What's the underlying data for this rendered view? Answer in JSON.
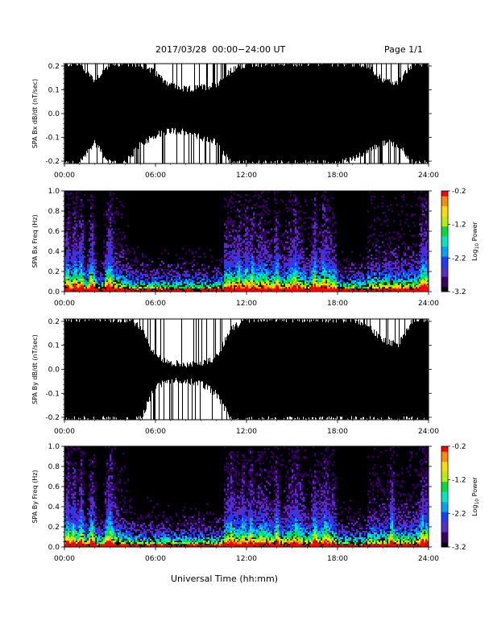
{
  "header": {
    "title": "2017/03/28  00:00−24:00 UT",
    "page": "Page 1/1"
  },
  "xlabel": "Universal Time (hh:mm)",
  "x_ticks": [
    "00:00",
    "06:00",
    "12:00",
    "18:00",
    "24:00"
  ],
  "colors": {
    "trace": "#000000",
    "background": "#ffffff",
    "spectrogram_bg": "#000000"
  },
  "colorbar": {
    "label": "Log",
    "label_sub": "10",
    "label_tail": " Power",
    "ticks": [
      "-0.2",
      "-1.2",
      "-2.2",
      "-3.2"
    ],
    "tick_values": [
      -0.2,
      -1.2,
      -2.2,
      -3.2
    ],
    "range": [
      -3.2,
      -0.2
    ],
    "colormap": [
      "#000000",
      "#3a0068",
      "#5a2cc8",
      "#1e3cff",
      "#00a0ff",
      "#00e6c8",
      "#00dc3c",
      "#b4f000",
      "#ffdc00",
      "#ff8c00",
      "#ff0000"
    ]
  },
  "chart_data": [
    {
      "type": "line",
      "title": "",
      "ylabel": "SPA Bx dB/dt (nT/sec)",
      "xlim": [
        0,
        24
      ],
      "ylim": [
        -0.21,
        0.21
      ],
      "y_ticks": [
        "0.2",
        "0.1",
        "0.0",
        "-0.1",
        "-0.2"
      ],
      "y_tick_values": [
        0.2,
        0.1,
        0.0,
        -0.1,
        -0.2
      ],
      "envelope_hours": [
        0,
        1,
        2,
        3,
        4,
        5,
        6,
        7,
        8,
        9,
        10,
        11,
        12,
        13,
        14,
        15,
        16,
        17,
        18,
        19,
        20,
        21,
        22,
        23,
        24
      ],
      "envelope_upper": [
        0.21,
        0.21,
        0.14,
        0.21,
        0.21,
        0.21,
        0.17,
        0.12,
        0.1,
        0.11,
        0.12,
        0.18,
        0.21,
        0.21,
        0.21,
        0.21,
        0.21,
        0.21,
        0.21,
        0.21,
        0.2,
        0.14,
        0.13,
        0.21,
        0.21
      ],
      "envelope_lower": [
        -0.21,
        -0.21,
        -0.12,
        -0.21,
        -0.21,
        -0.13,
        -0.09,
        -0.07,
        -0.08,
        -0.1,
        -0.12,
        -0.21,
        -0.21,
        -0.21,
        -0.21,
        -0.21,
        -0.21,
        -0.21,
        -0.21,
        -0.19,
        -0.16,
        -0.12,
        -0.13,
        -0.21,
        -0.21
      ]
    },
    {
      "type": "heatmap",
      "title": "",
      "ylabel": "SPA Bx Freq (Hz)",
      "xlim": [
        0,
        24
      ],
      "ylim": [
        0,
        1.0
      ],
      "y_ticks": [
        "1.0",
        "0.8",
        "0.6",
        "0.4",
        "0.2",
        "0.0"
      ],
      "y_tick_values": [
        1.0,
        0.8,
        0.6,
        0.4,
        0.2,
        0.0
      ],
      "value_label": "Log10 Power",
      "bursts_hours": [
        0.2,
        0.7,
        1.1,
        1.8,
        2.9,
        3.05,
        11.5,
        12.0,
        12.4,
        14.0,
        15.2,
        16.5,
        17.1,
        23.6,
        23.8
      ]
    },
    {
      "type": "line",
      "title": "",
      "ylabel": "SPA By dB/dt (nT/sec)",
      "xlim": [
        0,
        24
      ],
      "ylim": [
        -0.21,
        0.21
      ],
      "y_ticks": [
        "0.2",
        "0.1",
        "0.0",
        "-0.1",
        "-0.2"
      ],
      "y_tick_values": [
        0.2,
        0.1,
        0.0,
        -0.1,
        -0.2
      ],
      "envelope_hours": [
        0,
        1,
        2,
        3,
        4,
        5,
        6,
        7,
        8,
        9,
        10,
        11,
        12,
        13,
        14,
        15,
        16,
        17,
        18,
        19,
        20,
        21,
        22,
        23,
        24
      ],
      "envelope_upper": [
        0.21,
        0.21,
        0.21,
        0.21,
        0.21,
        0.18,
        0.05,
        0.03,
        0.02,
        0.02,
        0.05,
        0.17,
        0.21,
        0.21,
        0.21,
        0.21,
        0.21,
        0.21,
        0.21,
        0.21,
        0.18,
        0.12,
        0.1,
        0.21,
        0.21
      ],
      "envelope_lower": [
        -0.21,
        -0.21,
        -0.21,
        -0.21,
        -0.21,
        -0.21,
        -0.07,
        -0.05,
        -0.05,
        -0.06,
        -0.1,
        -0.21,
        -0.21,
        -0.21,
        -0.21,
        -0.21,
        -0.21,
        -0.21,
        -0.21,
        -0.21,
        -0.21,
        -0.21,
        -0.21,
        -0.21,
        -0.21
      ]
    },
    {
      "type": "heatmap",
      "title": "",
      "ylabel": "SPA By Freq (Hz)",
      "xlim": [
        0,
        24
      ],
      "ylim": [
        0,
        1.0
      ],
      "y_ticks": [
        "1.0",
        "0.8",
        "0.6",
        "0.4",
        "0.2",
        "0.0"
      ],
      "y_tick_values": [
        1.0,
        0.8,
        0.6,
        0.4,
        0.2,
        0.0
      ],
      "value_label": "Log10 Power",
      "bursts_hours": [
        0.2,
        0.6,
        1.1,
        1.8,
        2.9,
        3.05,
        11.0,
        11.8,
        12.3,
        14.0,
        15.3,
        16.5,
        17.2,
        21.6,
        23.6,
        23.9
      ]
    }
  ]
}
